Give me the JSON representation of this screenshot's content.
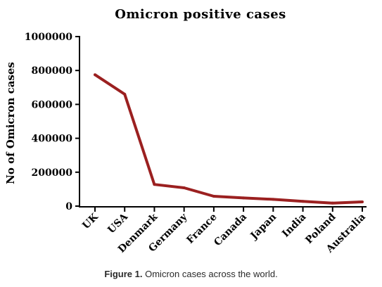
{
  "chart_data": {
    "type": "line",
    "title": "Omicron positive cases",
    "ylabel": "No of Omicron cases",
    "xlabel": "",
    "categories": [
      "UK",
      "USA",
      "Denmark",
      "Germany",
      "France",
      "Canada",
      "Japan",
      "India",
      "Poland",
      "Australia"
    ],
    "series": [
      {
        "values": [
          775000,
          660000,
          128000,
          108000,
          58000,
          48000,
          40000,
          28000,
          18000,
          25000
        ],
        "color": "#9b2020"
      }
    ],
    "ylim": [
      0,
      1000000
    ],
    "yticks": [
      "0",
      "200000",
      "400000",
      "600000",
      "800000",
      "1000000"
    ],
    "grid": false,
    "legend": "none"
  },
  "caption": {
    "label": "Figure 1.",
    "text": " Omicron cases across the world."
  }
}
